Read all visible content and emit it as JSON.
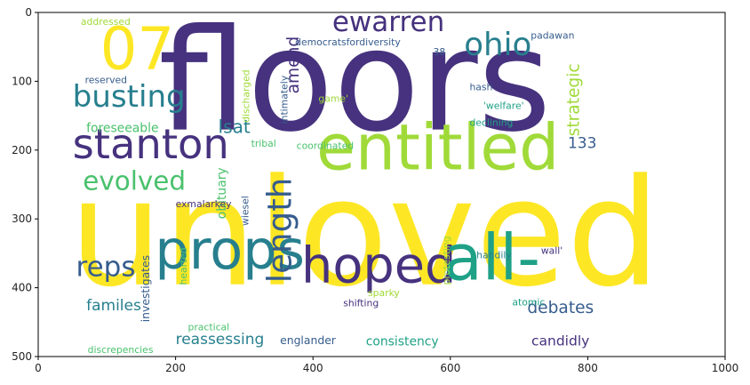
{
  "chart_data": {
    "type": "wordcloud",
    "title": "",
    "xlabel": "",
    "ylabel": "",
    "xlim": [
      0,
      1000
    ],
    "ylim": [
      500,
      0
    ],
    "xticks": [
      0,
      200,
      400,
      600,
      800,
      1000
    ],
    "yticks": [
      0,
      100,
      200,
      300,
      400,
      500
    ],
    "palette": {
      "dark_purple": "#46327e",
      "blue": "#365c8d",
      "teal": "#277f8e",
      "green": "#1fa187",
      "light_green": "#4ac16d",
      "lime": "#a0da39",
      "yellow": "#fde725"
    },
    "words": [
      {
        "text": "floors",
        "x": 175,
        "y": 170,
        "size": 205,
        "color": "#46327e"
      },
      {
        "text": "unloved",
        "x": 45,
        "y": 395,
        "size": 215,
        "color": "#fde725"
      },
      {
        "text": "props",
        "x": 170,
        "y": 372,
        "size": 78,
        "color": "#277f8e"
      },
      {
        "text": "hoped",
        "x": 383,
        "y": 392,
        "size": 72,
        "color": "#46327e"
      },
      {
        "text": "all-",
        "x": 590,
        "y": 388,
        "size": 92,
        "color": "#1fa187"
      },
      {
        "text": "entitled",
        "x": 405,
        "y": 228,
        "size": 92,
        "color": "#a0da39"
      },
      {
        "text": "stanton",
        "x": 50,
        "y": 212,
        "size": 60,
        "color": "#46327e"
      },
      {
        "text": "07",
        "x": 90,
        "y": 82,
        "size": 85,
        "color": "#fde725"
      },
      {
        "text": "busting",
        "x": 50,
        "y": 137,
        "size": 44,
        "color": "#277f8e"
      },
      {
        "text": "ewarren",
        "x": 428,
        "y": 27,
        "size": 40,
        "color": "#46327e"
      },
      {
        "text": "ohio",
        "x": 620,
        "y": 62,
        "size": 46,
        "color": "#277f8e"
      },
      {
        "text": "evolved",
        "x": 65,
        "y": 258,
        "size": 38,
        "color": "#4ac16d"
      },
      {
        "text": "reps",
        "x": 55,
        "y": 383,
        "size": 40,
        "color": "#365c8d"
      },
      {
        "text": "length",
        "x": 368,
        "y": 393,
        "size": 48,
        "color": "#365c8d",
        "rotate": true
      },
      {
        "text": "amend",
        "x": 379,
        "y": 118,
        "size": 24,
        "color": "#46327e",
        "rotate": true
      },
      {
        "text": "strategic",
        "x": 787,
        "y": 180,
        "size": 24,
        "color": "#a0da39",
        "rotate": true
      },
      {
        "text": "lsat",
        "x": 262,
        "y": 175,
        "size": 26,
        "color": "#277f8e"
      },
      {
        "text": "foreseeable",
        "x": 70,
        "y": 174,
        "size": 18,
        "color": "#4ac16d"
      },
      {
        "text": "obituary",
        "x": 273,
        "y": 300,
        "size": 18,
        "color": "#4ac16d",
        "rotate": true
      },
      {
        "text": "133",
        "x": 771,
        "y": 197,
        "size": 22,
        "color": "#365c8d"
      },
      {
        "text": "debates",
        "x": 712,
        "y": 437,
        "size": 24,
        "color": "#365c8d"
      },
      {
        "text": "familes",
        "x": 70,
        "y": 433,
        "size": 22,
        "color": "#277f8e"
      },
      {
        "text": "reassessing",
        "x": 200,
        "y": 482,
        "size": 22,
        "color": "#277f8e"
      },
      {
        "text": "candidly",
        "x": 718,
        "y": 484,
        "size": 20,
        "color": "#46327e"
      },
      {
        "text": "consistency",
        "x": 477,
        "y": 484,
        "size": 18,
        "color": "#1fa187"
      },
      {
        "text": "investigates",
        "x": 162,
        "y": 450,
        "size": 16,
        "color": "#365c8d",
        "rotate": true
      },
      {
        "text": "exmalarkey",
        "x": 200,
        "y": 283,
        "size": 14,
        "color": "#46327e"
      },
      {
        "text": "englander",
        "x": 352,
        "y": 482,
        "size": 16,
        "color": "#365c8d"
      },
      {
        "text": "discrepencies",
        "x": 72,
        "y": 495,
        "size": 14,
        "color": "#4ac16d"
      },
      {
        "text": "practical",
        "x": 218,
        "y": 462,
        "size": 14,
        "color": "#4ac16d"
      },
      {
        "text": "addressed",
        "x": 62,
        "y": 18,
        "size": 14,
        "color": "#a0da39"
      },
      {
        "text": "discharged",
        "x": 307,
        "y": 160,
        "size": 14,
        "color": "#a0da39",
        "rotate": true
      },
      {
        "text": "democratsfordiversity",
        "x": 374,
        "y": 48,
        "size": 14,
        "color": "#365c8d"
      },
      {
        "text": "padawan",
        "x": 717,
        "y": 38,
        "size": 14,
        "color": "#365c8d"
      },
      {
        "text": "38",
        "x": 575,
        "y": 62,
        "size": 14,
        "color": "#365c8d"
      },
      {
        "text": "hash",
        "x": 628,
        "y": 113,
        "size": 14,
        "color": "#365c8d"
      },
      {
        "text": "'welfare'",
        "x": 648,
        "y": 140,
        "size": 14,
        "color": "#1fa187"
      },
      {
        "text": "declining",
        "x": 628,
        "y": 165,
        "size": 14,
        "color": "#1fa187"
      },
      {
        "text": "coordinated",
        "x": 376,
        "y": 198,
        "size": 14,
        "color": "#4ac16d"
      },
      {
        "text": "tribal",
        "x": 310,
        "y": 195,
        "size": 14,
        "color": "#4ac16d"
      },
      {
        "text": "reserved",
        "x": 68,
        "y": 103,
        "size": 14,
        "color": "#365c8d"
      },
      {
        "text": "intimately",
        "x": 363,
        "y": 162,
        "size": 14,
        "color": "#365c8d",
        "rotate": true
      },
      {
        "text": "game'",
        "x": 408,
        "y": 130,
        "size": 14,
        "color": "#a0da39"
      },
      {
        "text": "wiesel",
        "x": 306,
        "y": 310,
        "size": 14,
        "color": "#365c8d",
        "rotate": true
      },
      {
        "text": "hearted",
        "x": 216,
        "y": 396,
        "size": 14,
        "color": "#4ac16d",
        "rotate": true
      },
      {
        "text": "protesting",
        "x": 599,
        "y": 396,
        "size": 14,
        "color": "#a0da39",
        "rotate": true
      },
      {
        "text": "handily",
        "x": 638,
        "y": 357,
        "size": 14,
        "color": "#277f8e"
      },
      {
        "text": "wall'",
        "x": 732,
        "y": 351,
        "size": 14,
        "color": "#46327e"
      },
      {
        "text": "sparky",
        "x": 480,
        "y": 412,
        "size": 14,
        "color": "#a0da39"
      },
      {
        "text": "atomic",
        "x": 690,
        "y": 426,
        "size": 14,
        "color": "#1fa187"
      },
      {
        "text": "shifting",
        "x": 444,
        "y": 427,
        "size": 14,
        "color": "#46327e"
      }
    ]
  }
}
